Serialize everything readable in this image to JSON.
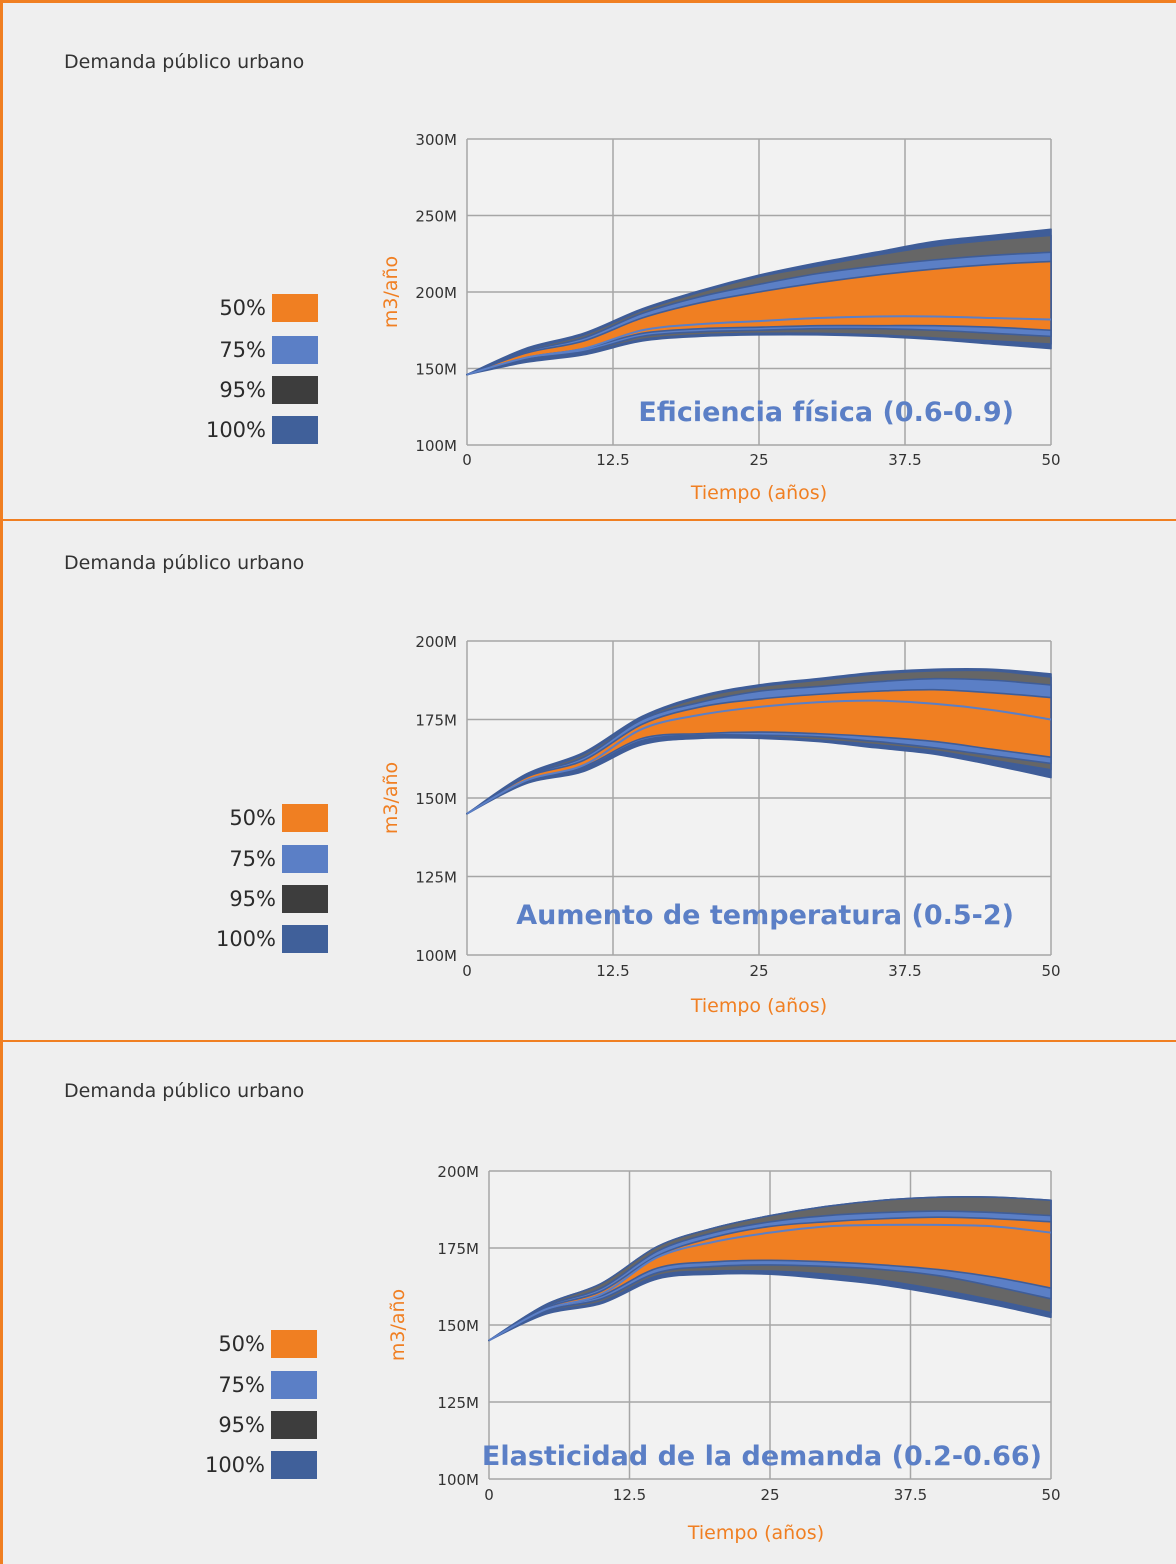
{
  "colors": {
    "frame": "#f07f22",
    "band_50": "#f07f22",
    "band_75": "#5b7fc6",
    "band_95": "#666666",
    "band_100": "#3f5d98",
    "legend_95": "#3d3d3d",
    "legend_100": "#40609a",
    "axis_title": "#f07f22",
    "annotation": "#5b7fc6",
    "grid": "#a6a6a6"
  },
  "legend": {
    "items": [
      {
        "label": "50%",
        "color": "#f07f22"
      },
      {
        "label": "75%",
        "color": "#5b7fc6"
      },
      {
        "label": "95%",
        "color": "#3d3d3d"
      },
      {
        "label": "100%",
        "color": "#40609a"
      }
    ]
  },
  "panels": [
    {
      "title": "Demanda público urbano",
      "annotation": "Eficiencia física (0.6-0.9)",
      "ytitle": "m3/año",
      "xtitle": "Tiempo (años)"
    },
    {
      "title": "Demanda público urbano",
      "annotation": "Aumento de temperatura (0.5-2)",
      "ytitle": "m3/año",
      "xtitle": "Tiempo (años)"
    },
    {
      "title": "Demanda público urbano",
      "annotation": "Elasticidad de la demanda (0.2-0.66)",
      "ytitle": "m3/año",
      "xtitle": "Tiempo (años)"
    }
  ],
  "chart_data": [
    {
      "type": "area",
      "title": "Demanda público urbano",
      "annotation": "Eficiencia física (0.6-0.9)",
      "xlabel": "Tiempo (años)",
      "ylabel": "m3/año",
      "xlim": [
        0,
        50
      ],
      "ylim": [
        100,
        300
      ],
      "unit_suffix": "M",
      "xticks": [
        0,
        12.5,
        25,
        37.5,
        50
      ],
      "xtick_labels": [
        "0",
        "12.5",
        "25",
        "37.5",
        "50"
      ],
      "yticks": [
        100,
        150,
        200,
        250,
        300
      ],
      "ytick_labels": [
        "100M",
        "150M",
        "200M",
        "250M",
        "300M"
      ],
      "grid": true,
      "legend": "left",
      "x": [
        0,
        5,
        10,
        15,
        20,
        25,
        30,
        35,
        40,
        45,
        50
      ],
      "median": [
        146,
        157,
        163,
        175,
        179,
        181,
        183,
        184,
        184,
        183,
        182
      ],
      "series": [
        {
          "name": "100%",
          "lower": [
            146,
            154,
            159,
            168,
            171,
            172,
            172,
            171,
            169,
            166,
            163
          ],
          "upper": [
            146,
            163,
            173,
            189,
            201,
            211,
            219,
            226,
            233,
            237,
            241
          ]
        },
        {
          "name": "95%",
          "lower": [
            146,
            155,
            160,
            169,
            172,
            173,
            173,
            172,
            170,
            168,
            166
          ],
          "upper": [
            146,
            162,
            172,
            188,
            200,
            210,
            217,
            224,
            230,
            234,
            237
          ]
        },
        {
          "name": "75%",
          "lower": [
            146,
            156,
            161,
            171,
            174,
            175,
            176,
            176,
            175,
            173,
            171
          ],
          "upper": [
            146,
            161,
            170,
            186,
            197,
            205,
            212,
            217,
            221,
            224,
            226
          ]
        },
        {
          "name": "50%",
          "lower": [
            146,
            157,
            163,
            173,
            176,
            177,
            178,
            178,
            178,
            177,
            175
          ],
          "upper": [
            146,
            160,
            168,
            183,
            193,
            200,
            206,
            211,
            215,
            218,
            220
          ]
        }
      ]
    },
    {
      "type": "area",
      "title": "Demanda público urbano",
      "annotation": "Aumento de temperatura (0.5-2)",
      "xlabel": "Tiempo (años)",
      "ylabel": "m3/año",
      "xlim": [
        0,
        50
      ],
      "ylim": [
        100,
        200
      ],
      "unit_suffix": "M",
      "xticks": [
        0,
        12.5,
        25,
        37.5,
        50
      ],
      "xtick_labels": [
        "0",
        "12.5",
        "25",
        "37.5",
        "50"
      ],
      "yticks": [
        100,
        125,
        150,
        175,
        200
      ],
      "ytick_labels": [
        "100M",
        "125M",
        "150M",
        "175M",
        "200M"
      ],
      "grid": true,
      "legend": "left",
      "x": [
        0,
        5,
        10,
        15,
        20,
        25,
        30,
        35,
        40,
        45,
        50
      ],
      "median": [
        145,
        155.5,
        160.5,
        172,
        176.5,
        179,
        180.5,
        181,
        180,
        178,
        175
      ],
      "series": [
        {
          "name": "100%",
          "lower": [
            145,
            154.5,
            158.5,
            167,
            169,
            169,
            168,
            166,
            164,
            160.5,
            156.5
          ],
          "upper": [
            145,
            157.5,
            164.5,
            176,
            182.5,
            186,
            188,
            190,
            191,
            191,
            189.5
          ]
        },
        {
          "name": "95%",
          "lower": [
            145,
            155,
            159,
            168,
            169.5,
            169.5,
            168.5,
            167,
            165,
            162,
            159
          ],
          "upper": [
            145,
            157,
            164,
            175.5,
            182,
            185.5,
            187.5,
            189.5,
            190.5,
            190.5,
            188.5
          ]
        },
        {
          "name": "75%",
          "lower": [
            145,
            155.3,
            159.5,
            168.3,
            170,
            170,
            169.5,
            168,
            166,
            163.5,
            161
          ],
          "upper": [
            145,
            156.8,
            163,
            175,
            180.5,
            184,
            185.5,
            187,
            188,
            187.5,
            186
          ]
        },
        {
          "name": "50%",
          "lower": [
            145,
            155.5,
            160,
            169,
            170.5,
            171,
            170.5,
            169.5,
            168,
            165.5,
            163
          ],
          "upper": [
            145,
            156.5,
            162,
            173.5,
            179,
            181.5,
            183,
            184,
            184.5,
            183.5,
            182
          ]
        }
      ]
    },
    {
      "type": "area",
      "title": "Demanda público urbano",
      "annotation": "Elasticidad de la demanda (0.2-0.66)",
      "xlabel": "Tiempo (años)",
      "ylabel": "m3/año",
      "xlim": [
        0,
        50
      ],
      "ylim": [
        100,
        200
      ],
      "unit_suffix": "M",
      "xticks": [
        0,
        12.5,
        25,
        37.5,
        50
      ],
      "xtick_labels": [
        "0",
        "12.5",
        "25",
        "37.5",
        "50"
      ],
      "yticks": [
        100,
        125,
        150,
        175,
        200
      ],
      "ytick_labels": [
        "100M",
        "125M",
        "150M",
        "175M",
        "200M"
      ],
      "grid": true,
      "legend": "left",
      "x": [
        0,
        5,
        10,
        15,
        20,
        25,
        30,
        35,
        40,
        45,
        50
      ],
      "median": [
        145,
        155,
        160,
        172,
        177,
        180,
        182,
        182.5,
        182.5,
        182,
        180
      ],
      "series": [
        {
          "name": "100%",
          "lower": [
            145,
            153.5,
            157,
            165,
            166.5,
            166.5,
            165,
            163,
            160,
            156.5,
            152.5
          ],
          "upper": [
            145,
            156.5,
            163.5,
            175.5,
            181.5,
            185.5,
            188.5,
            190.5,
            191.5,
            191.5,
            190.5
          ]
        },
        {
          "name": "95%",
          "lower": [
            145,
            154,
            157.5,
            166,
            167.5,
            167.5,
            166.5,
            164.5,
            161.5,
            158,
            154
          ]
        },
        {
          "name": "75%",
          "lower": [
            145,
            154.5,
            158.5,
            167,
            169,
            169.5,
            169,
            168,
            166,
            162.5,
            158.5
          ],
          "upper": [
            145,
            156,
            162,
            174,
            180,
            183.5,
            185.5,
            186.5,
            187,
            186.5,
            185.5
          ]
        },
        {
          "name": "50%",
          "lower": [
            145,
            155,
            159.5,
            168.5,
            170.5,
            171,
            170.5,
            169.5,
            168,
            165.5,
            162
          ],
          "upper": [
            145,
            155.5,
            161,
            172.5,
            178.5,
            182,
            183.5,
            184.5,
            185,
            184.5,
            183.5
          ]
        }
      ]
    }
  ]
}
